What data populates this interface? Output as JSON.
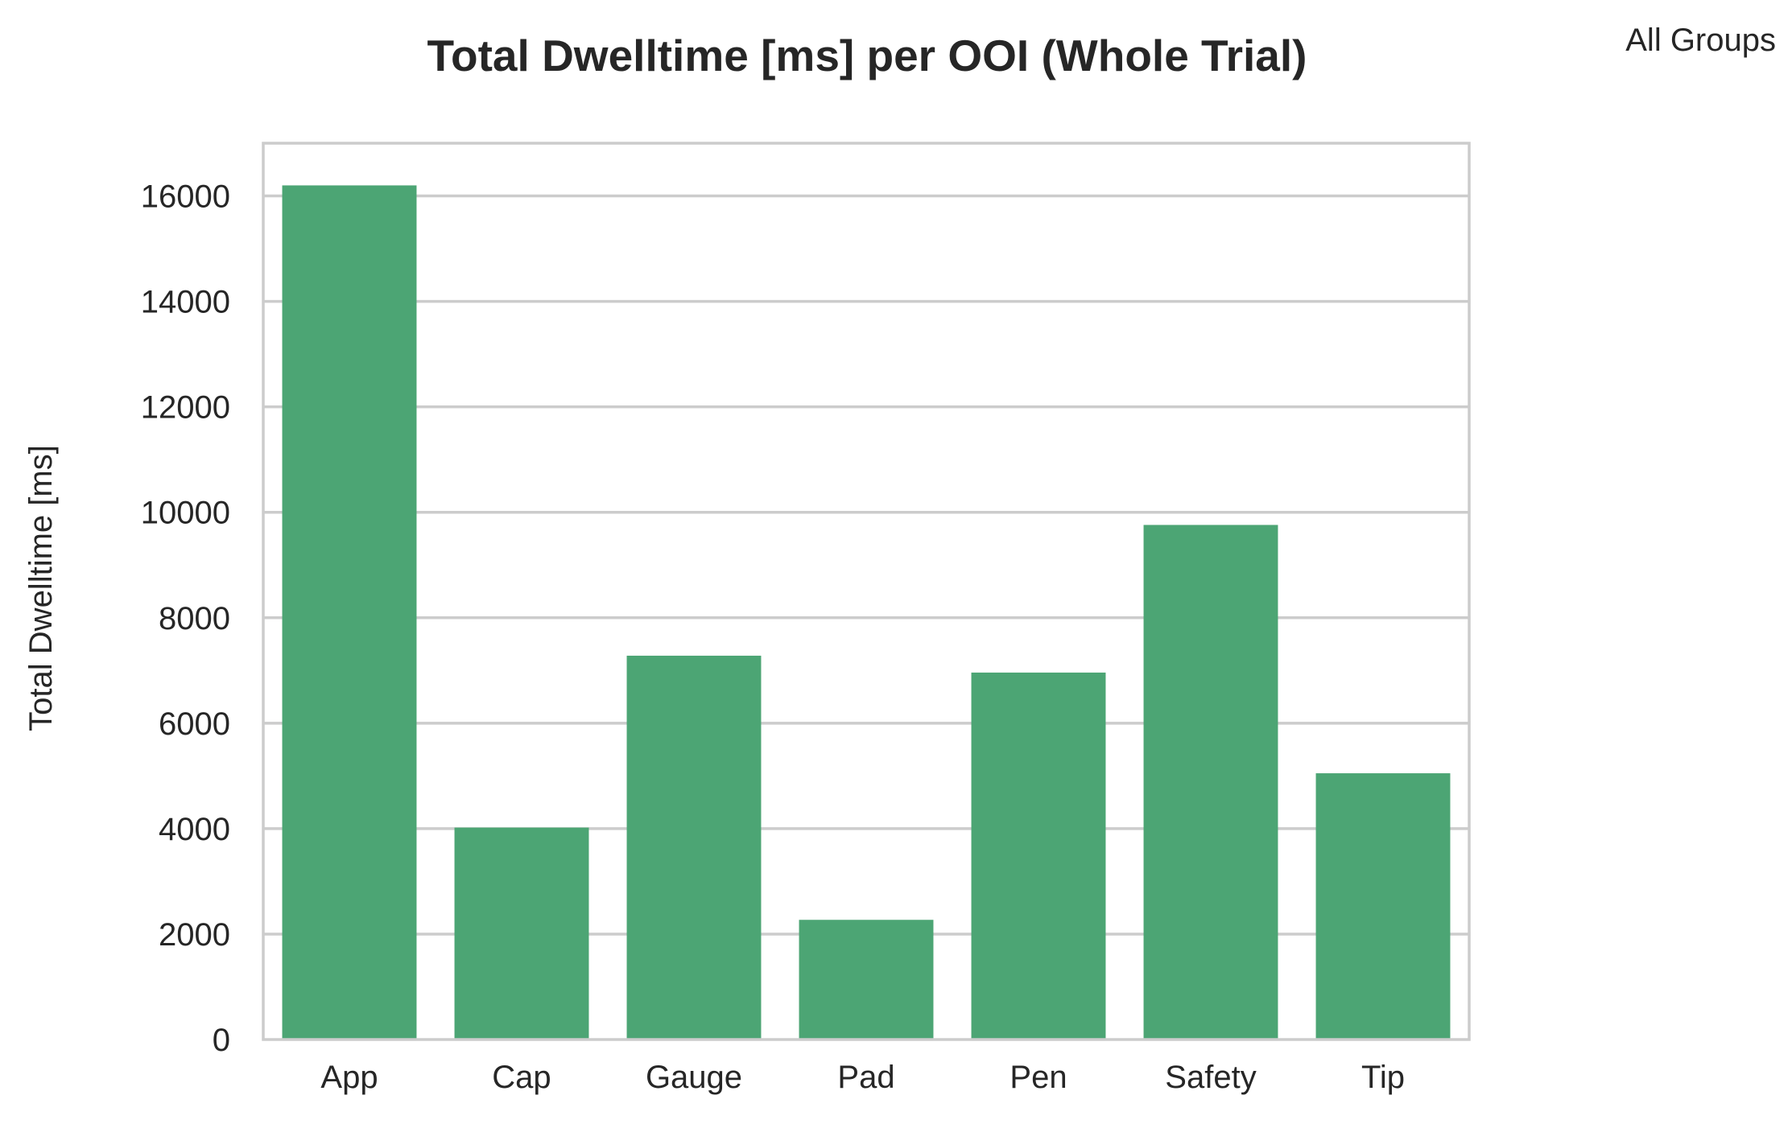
{
  "colors": {
    "bar": "#4ca574",
    "grid": "#cccccc",
    "frame": "#cccccc",
    "text": "#262626"
  },
  "chart_data": {
    "type": "bar",
    "title": "Total Dwelltime [ms] per OOI (Whole Trial)",
    "annotation": "All Groups",
    "xlabel": "",
    "ylabel": "Total Dwelltime [ms]",
    "categories": [
      "App",
      "Cap",
      "Gauge",
      "Pad",
      "Pen",
      "Safety",
      "Tip"
    ],
    "values": [
      16200,
      4020,
      7280,
      2270,
      6960,
      9760,
      5050
    ],
    "ylim": [
      0,
      17000
    ],
    "yticks": [
      0,
      2000,
      4000,
      6000,
      8000,
      10000,
      12000,
      14000,
      16000
    ],
    "grid": true,
    "grid_axis": "y",
    "legend": "none"
  }
}
